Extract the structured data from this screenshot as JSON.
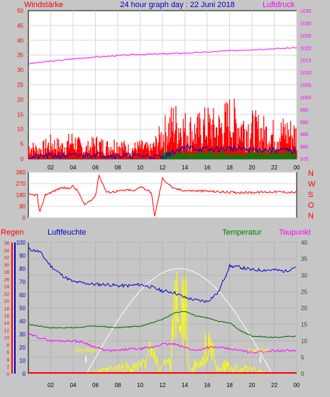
{
  "chart_data": [
    {
      "type": "line",
      "title": "24 hour graph day : 22 Juni 2018",
      "left_axis_label": "Windstärke",
      "right_axis_label": "Luftdruck",
      "x_tick_labels": [
        "02",
        "04",
        "06",
        "08",
        "10",
        "12",
        "14",
        "16",
        "18",
        "20",
        "22",
        "00"
      ],
      "ylim_left": [
        0,
        50
      ],
      "ylim_right": [
        975,
        1035
      ],
      "left_ticks": [
        "0",
        "5",
        "10",
        "15",
        "20",
        "25",
        "30",
        "35",
        "40",
        "45",
        "50"
      ],
      "right_ticks": [
        "975",
        "980",
        "985",
        "990",
        "995",
        "1000",
        "1005",
        "1010",
        "1015",
        "1020",
        "1025",
        "1030",
        "1035"
      ],
      "colors": {
        "gust": "#ff0000",
        "mean_wind": "#0000cc",
        "calm_bars": "#008000",
        "pressure": "#ff00ff",
        "axis_left": "#ff0000",
        "axis_right": "#ff00ff"
      },
      "series": [
        {
          "x": [
            0,
            2,
            4,
            6,
            8,
            10,
            12,
            14,
            16,
            18,
            20,
            22,
            24
          ],
          "values": [
            1013.5,
            1014.5,
            1015.5,
            1016.2,
            1016.8,
            1017.3,
            1017.5,
            1017.8,
            1018.2,
            1018.8,
            1019.2,
            1019.6,
            1020.0
          ]
        },
        {
          "x": [
            0,
            1,
            2,
            3,
            4,
            5,
            6,
            7,
            8,
            9,
            10,
            11,
            12,
            13,
            14,
            15,
            16,
            17,
            18,
            19,
            20,
            21,
            22,
            23,
            24
          ],
          "values": [
            4,
            3,
            5,
            4,
            6,
            3,
            5,
            4,
            5,
            3,
            4,
            3,
            8,
            12,
            10,
            9,
            11,
            10,
            13,
            11,
            10,
            9,
            8,
            9,
            8
          ]
        },
        {
          "x": [
            0,
            2,
            4,
            6,
            8,
            10,
            12,
            14,
            16,
            18,
            20,
            22,
            24
          ],
          "values": [
            0.5,
            1,
            1,
            1.5,
            1,
            1,
            0.5,
            4,
            3,
            3.5,
            3,
            3,
            2.5
          ]
        }
      ]
    },
    {
      "type": "line",
      "left_ticks": [
        "0",
        "90",
        "180",
        "270",
        "360"
      ],
      "right_labels": [
        "N",
        "W",
        "S",
        "O",
        "N"
      ],
      "ylim": [
        0,
        360
      ],
      "colors": {
        "direction": "#ff0000",
        "axis": "#ff0000"
      },
      "series": [
        {
          "x": [
            0,
            0.8,
            1.0,
            1.5,
            2.5,
            3.0,
            3.5,
            4.0,
            4.5,
            5.0,
            6.0,
            6.3,
            7.0,
            8.0,
            9.0,
            9.5,
            10.0,
            11.0,
            11.3,
            12.0,
            13.0,
            14.0,
            16.0,
            18.0,
            20.0,
            22.0,
            24.0
          ],
          "values": [
            180,
            180,
            30,
            180,
            220,
            240,
            230,
            250,
            200,
            100,
            170,
            340,
            200,
            210,
            220,
            210,
            250,
            200,
            10,
            310,
            230,
            215,
            210,
            200,
            200,
            205,
            200
          ]
        }
      ]
    },
    {
      "type": "line",
      "series_labels": [
        "Regen",
        "Luftfeuchte",
        "Temperatur",
        "Taupunkt"
      ],
      "left_ticks_rain": [
        "0",
        "2",
        "4",
        "6",
        "8",
        "10",
        "12",
        "14",
        "16",
        "18",
        "20",
        "22",
        "24",
        "26",
        "28",
        "30",
        "32",
        "34",
        "36"
      ],
      "left_ticks_humidity": [
        "0",
        "10",
        "20",
        "30",
        "40",
        "50",
        "60",
        "70",
        "80",
        "90",
        "100"
      ],
      "right_ticks": [
        "0",
        "5",
        "10",
        "15",
        "20",
        "25",
        "30",
        "35",
        "40"
      ],
      "annotations": [
        "Sun Rise",
        "Sun Set"
      ],
      "colors": {
        "rain": "#ff0000",
        "humidity": "#0000cc",
        "temperature": "#006600",
        "dewpoint": "#ff00ff",
        "sun": "#ffff00",
        "sun_curve": "#ffffff"
      },
      "series": [
        {
          "x": [
            0,
            1,
            2,
            3,
            4,
            5,
            6,
            7,
            8,
            9,
            10,
            11,
            12,
            13,
            14,
            15,
            16,
            17,
            18,
            19,
            20,
            21,
            22,
            23,
            24
          ],
          "values": [
            95,
            93,
            82,
            75,
            70,
            69,
            68,
            68,
            67,
            67,
            68,
            66,
            63,
            62,
            58,
            56,
            55,
            62,
            82,
            81,
            79,
            79,
            79,
            78,
            82
          ]
        },
        {
          "x": [
            0,
            2,
            4,
            6,
            8,
            10,
            12,
            13,
            14,
            15,
            16,
            17,
            18,
            19,
            20,
            22,
            24
          ],
          "values": [
            15,
            14,
            14,
            14.5,
            14,
            14.5,
            16.5,
            18.5,
            19,
            17.5,
            17,
            16,
            15.5,
            13,
            11.5,
            11,
            11.5
          ]
        },
        {
          "x": [
            0,
            1,
            2,
            3,
            4,
            5,
            6,
            7,
            8,
            9,
            10,
            11,
            12,
            13,
            14,
            15,
            16,
            17,
            18,
            19,
            20,
            22,
            24
          ],
          "values": [
            12,
            11,
            10,
            10,
            10,
            9.5,
            8,
            7,
            7,
            7.5,
            7.5,
            8,
            9,
            9,
            8,
            7,
            8,
            8,
            7.5,
            7,
            6.5,
            7,
            7
          ]
        }
      ]
    }
  ]
}
